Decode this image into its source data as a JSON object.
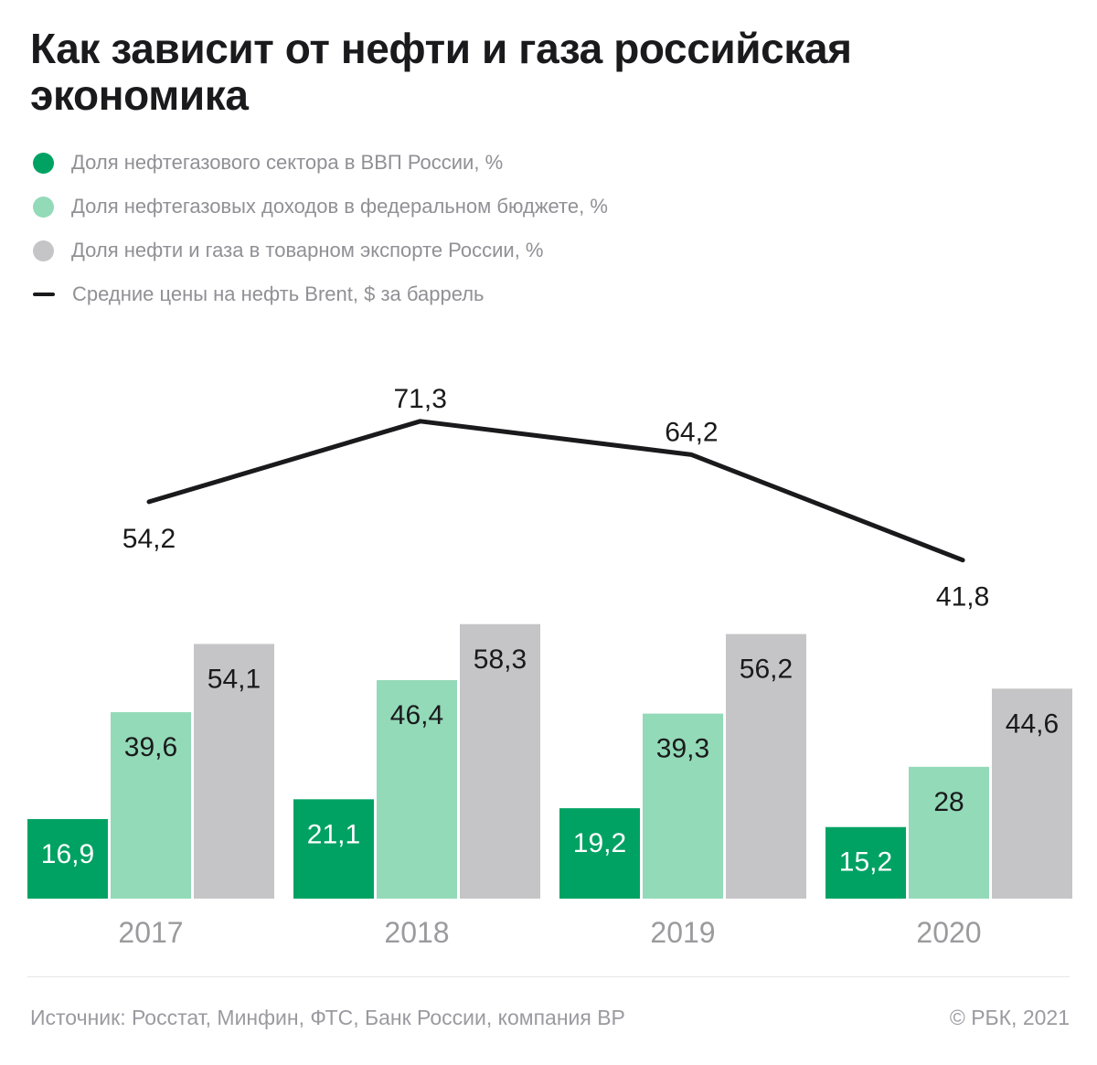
{
  "title": "Как зависит от нефти и газа российская экономика",
  "legend": [
    {
      "label": "Доля нефтегазового сектора в ВВП России, %",
      "marker": "dot",
      "color": "#00a263"
    },
    {
      "label": "Доля нефтегазовых доходов в федеральном бюджете, %",
      "marker": "dot",
      "color": "#93dab8"
    },
    {
      "label": "Доля нефти и газа в товарном экспорте России, %",
      "marker": "dot",
      "color": "#c5c5c7"
    },
    {
      "label": "Средние цены на нефть Brent, $ за баррель",
      "marker": "line",
      "color": "#1a1a1c"
    }
  ],
  "chart_data": {
    "type": "bar",
    "categories": [
      "2017",
      "2018",
      "2019",
      "2020"
    ],
    "series": [
      {
        "name": "Доля нефтегазового сектора в ВВП России, %",
        "type": "bar",
        "color": "#00a263",
        "label_color": "#ffffff",
        "values": [
          16.9,
          21.1,
          19.2,
          15.2
        ],
        "labels": [
          "16,9",
          "21,1",
          "19,2",
          "15,2"
        ]
      },
      {
        "name": "Доля нефтегазовых доходов в федеральном бюджете, %",
        "type": "bar",
        "color": "#93dab8",
        "label_color": "#1a1a1c",
        "values": [
          39.6,
          46.4,
          39.3,
          28
        ],
        "labels": [
          "39,6",
          "46,4",
          "39,3",
          "28"
        ]
      },
      {
        "name": "Доля нефти и газа в товарном экспорте России, %",
        "type": "bar",
        "color": "#c5c5c7",
        "label_color": "#1a1a1c",
        "values": [
          54.1,
          58.3,
          56.2,
          44.6
        ],
        "labels": [
          "54,1",
          "58,3",
          "56,2",
          "44,6"
        ]
      },
      {
        "name": "Средние цены на нефть Brent, $ за баррель",
        "type": "line",
        "color": "#1a1a1c",
        "values": [
          54.2,
          71.3,
          64.2,
          41.8
        ],
        "labels": [
          "54,2",
          "71,3",
          "64,2",
          "41,8"
        ],
        "label_positions": [
          "below",
          "above",
          "above",
          "below"
        ]
      }
    ],
    "title": "Как зависит от нефти и газа российская экономика",
    "xlabel": "",
    "ylabel": "",
    "value_axis_visible": false,
    "grid": false,
    "legend_position": "top-left",
    "bar_value_labels": "inside-top",
    "category_label_color": "#9b9b9e"
  },
  "footer": {
    "source": "Источник: Росстат, Минфин, ФТС, Банк России, компания BP",
    "copyright": "© РБК, 2021"
  }
}
